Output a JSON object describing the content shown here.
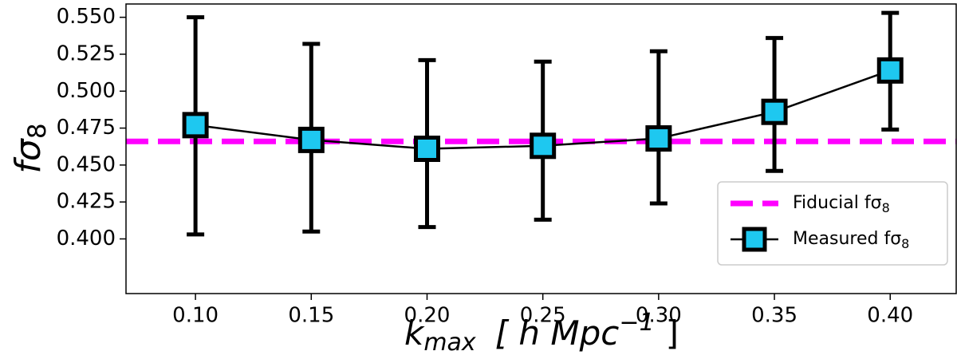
{
  "chart_data": {
    "type": "errorbar",
    "xlabel": {
      "text": "k",
      "subscript": "max",
      "suffix": "[ h Mpc",
      "superscript": "−1",
      "end": "]"
    },
    "ylabel": {
      "text": "fσ",
      "subscript": "8"
    },
    "x": [
      0.1,
      0.15,
      0.2,
      0.25,
      0.3,
      0.35,
      0.4
    ],
    "series": [
      {
        "name": "Measured fσ",
        "name_subscript": "8",
        "color": "#1ec8f0",
        "edge_color": "#000000",
        "values": [
          0.477,
          0.467,
          0.461,
          0.463,
          0.468,
          0.486,
          0.514
        ],
        "yerr_lower": [
          0.074,
          0.062,
          0.053,
          0.05,
          0.044,
          0.04,
          0.04
        ],
        "yerr_upper": [
          0.073,
          0.065,
          0.06,
          0.057,
          0.059,
          0.05,
          0.039
        ]
      }
    ],
    "reference_lines": [
      {
        "name": "Fiducial fσ",
        "name_subscript": "8",
        "value": 0.466,
        "color": "#ff00ff"
      }
    ],
    "xlim": [
      0.07,
      0.4285
    ],
    "ylim": [
      0.363,
      0.559
    ],
    "xticks": [
      {
        "value": 0.1,
        "label": "0.10"
      },
      {
        "value": 0.15,
        "label": "0.15"
      },
      {
        "value": 0.2,
        "label": "0.20"
      },
      {
        "value": 0.25,
        "label": "0.25"
      },
      {
        "value": 0.3,
        "label": "0.30"
      },
      {
        "value": 0.35,
        "label": "0.35"
      },
      {
        "value": 0.4,
        "label": "0.40"
      }
    ],
    "yticks": [
      {
        "value": 0.4,
        "label": "0.400"
      },
      {
        "value": 0.425,
        "label": "0.425"
      },
      {
        "value": 0.45,
        "label": "0.450"
      },
      {
        "value": 0.475,
        "label": "0.475"
      },
      {
        "value": 0.5,
        "label": "0.500"
      },
      {
        "value": 0.525,
        "label": "0.525"
      },
      {
        "value": 0.55,
        "label": "0.550"
      }
    ],
    "legend": "lower right"
  }
}
